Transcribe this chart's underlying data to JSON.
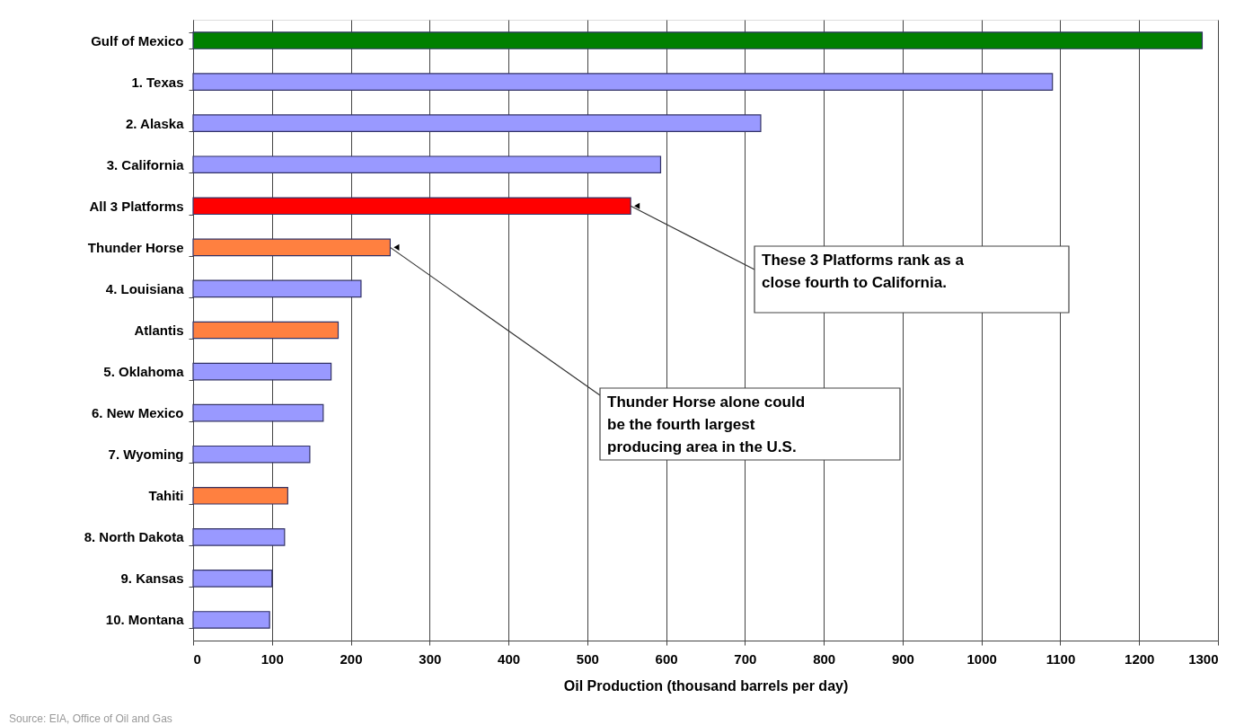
{
  "chart_data": {
    "type": "bar",
    "orientation": "horizontal",
    "xlabel": "Oil Production (thousand barrels per day)",
    "categories": [
      "Gulf of Mexico",
      "1. Texas",
      "2. Alaska",
      "3. California",
      "All 3 Platforms",
      "Thunder Horse",
      "4. Louisiana",
      "Atlantis",
      "5. Oklahoma",
      "6. New Mexico",
      "7. Wyoming",
      "Tahiti",
      "8. North Dakota",
      "9. Kansas",
      "10. Montana"
    ],
    "values": [
      1280,
      1090,
      720,
      593,
      555,
      250,
      213,
      184,
      175,
      165,
      148,
      120,
      116,
      100,
      97
    ],
    "colors": [
      "#008000",
      "#9999ff",
      "#9999ff",
      "#9999ff",
      "#ff0000",
      "#ff8040",
      "#9999ff",
      "#ff8040",
      "#9999ff",
      "#9999ff",
      "#9999ff",
      "#ff8040",
      "#9999ff",
      "#9999ff",
      "#9999ff"
    ],
    "xlim": [
      0,
      1300
    ],
    "xticks": [
      0,
      100,
      200,
      300,
      400,
      500,
      600,
      700,
      800,
      900,
      1000,
      1100,
      1200,
      1300
    ],
    "grid": "x",
    "legend": false,
    "annotations": [
      {
        "text": "These 3 Platforms rank as a\nclose fourth to California.",
        "x": 555,
        "y": "All 3 Platforms"
      },
      {
        "text": "Thunder Horse alone could\nbe the fourth largest\nproducing area in the U.S.",
        "x": 250,
        "y": "Thunder Horse"
      },
      "Source: EIA, Office of Oil and Gas"
    ]
  }
}
